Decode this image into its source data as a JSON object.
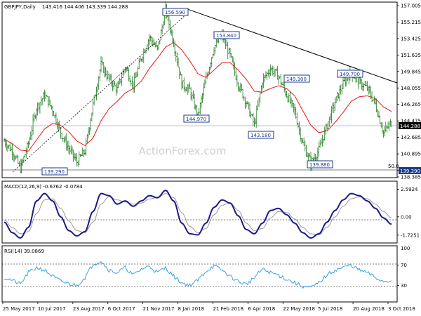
{
  "header": {
    "symbol_title": "GBPJPY,Daily",
    "ohlc": "143.416 144.406 143.339 144.288"
  },
  "watermark": "ActionForex.com",
  "price_panel": {
    "price_ticks": [
      "157.005",
      "155.215",
      "153.425",
      "151.635",
      "149.845",
      "148.055",
      "146.265",
      "144.475",
      "142.685",
      "140.895",
      "139.105",
      "138.385"
    ],
    "current_price": "144.288",
    "fib_label": "50.0",
    "fib_price": "139.290",
    "annotations": [
      {
        "label": "156.590"
      },
      {
        "label": "153.840"
      },
      {
        "label": "149.300"
      },
      {
        "label": "149.700"
      },
      {
        "label": "144.970"
      },
      {
        "label": "143.180"
      },
      {
        "label": "139.880"
      },
      {
        "label": "139.290"
      }
    ]
  },
  "macd_panel": {
    "title": "MACD(12,26,9) -0.6762 -0.0784",
    "ticks": [
      "2.5924",
      "0.00",
      "-1.7251"
    ]
  },
  "rsi_panel": {
    "title": "RSI(14) 39.0869",
    "ticks": [
      "70",
      "30"
    ],
    "extra_tick": "100"
  },
  "x_axis": {
    "labels": [
      "25 May 2017",
      "10 Jul 2017",
      "23 Aug 2017",
      "6 Oct 2017",
      "21 Nov 2017",
      "8 Jan 2018",
      "21 Feb 2018",
      "6 Apr 2018",
      "22 May 2018",
      "5 Jul 2018",
      "20 Aug 2018",
      "3 Oct 2018"
    ]
  },
  "colors": {
    "price_bars": "#1e7a1e",
    "moving_average": "#e51a1a",
    "macd_line": "#1a1a8c",
    "signal_line": "#9a9a9a",
    "rsi_line": "#34a3e6",
    "label_box": "#1a3a8c",
    "current_box": "#000000",
    "fib_box": "#1a3a8c"
  },
  "chart_data": [
    {
      "type": "line",
      "title": "GBPJPY,Daily",
      "series": [
        {
          "values": [
            142.3,
            141.2,
            139.3,
            142.0,
            145.9,
            147.3,
            145.7,
            143.2,
            141.5,
            140.0,
            141.2,
            146.2,
            150.6,
            149.0,
            147.9,
            150.4,
            148.3,
            151.4,
            153.6,
            152.2,
            156.6,
            153.0,
            148.5,
            147.8,
            145.0,
            149.0,
            152.5,
            153.8,
            151.5,
            148.5,
            146.5,
            144.0,
            148.8,
            150.2,
            149.3,
            147.3,
            145.5,
            142.0,
            139.9,
            141.3,
            144.0,
            146.5,
            148.5,
            149.7,
            148.7,
            148.0,
            146.3,
            143.2,
            144.3
          ]
        },
        {
          "name": "Moving average",
          "values": [
            142.5,
            142.0,
            141.3,
            141.2,
            142.4,
            143.6,
            144.2,
            144.0,
            143.3,
            142.3,
            141.8,
            142.6,
            144.5,
            145.8,
            146.6,
            147.5,
            148.0,
            148.8,
            150.2,
            151.3,
            152.5,
            153.0,
            152.2,
            151.0,
            149.6,
            149.2,
            150.0,
            150.8,
            150.8,
            150.0,
            149.0,
            147.7,
            147.6,
            148.0,
            148.3,
            148.0,
            147.2,
            145.6,
            144.0,
            143.2,
            143.4,
            144.3,
            145.4,
            146.6,
            147.1,
            147.2,
            146.9,
            146.0,
            145.5
          ]
        },
        {
          "name": "Trend line",
          "values": [
            156.6,
            148.6
          ]
        }
      ],
      "ylim": [
        138.385,
        157.005
      ]
    },
    {
      "type": "line",
      "title": "MACD(12,26,9) -0.6762 -0.0784",
      "series": [
        {
          "values": [
            -0.5,
            -1.5,
            -2.0,
            -1.0,
            1.5,
            2.2,
            1.5,
            0.0,
            -1.3,
            -1.8,
            -1.4,
            0.5,
            2.2,
            2.0,
            1.2,
            1.5,
            1.0,
            1.5,
            2.0,
            1.8,
            2.5,
            1.5,
            -0.6,
            -1.6,
            -1.7,
            -0.6,
            0.9,
            1.6,
            1.3,
            0.1,
            -1.2,
            -1.6,
            -0.6,
            0.6,
            0.8,
            0.2,
            -0.6,
            -1.5,
            -2.0,
            -1.6,
            -0.5,
            0.6,
            1.6,
            2.2,
            2.0,
            1.5,
            0.8,
            -0.1,
            -0.7
          ]
        },
        {
          "values": [
            -0.3,
            -1.0,
            -1.6,
            -1.4,
            0.3,
            1.6,
            1.7,
            0.8,
            -0.4,
            -1.3,
            -1.5,
            -0.5,
            1.2,
            1.9,
            1.6,
            1.4,
            1.2,
            1.3,
            1.7,
            1.8,
            2.2,
            1.8,
            0.4,
            -0.9,
            -1.5,
            -1.1,
            0.2,
            1.1,
            1.3,
            0.6,
            -0.6,
            -1.3,
            -1.1,
            -0.1,
            0.5,
            0.4,
            -0.2,
            -1.0,
            -1.6,
            -1.7,
            -1.0,
            0.0,
            1.0,
            1.7,
            1.9,
            1.7,
            1.2,
            0.5,
            -0.1
          ]
        }
      ],
      "ylim": [
        -2.4,
        3.1
      ]
    },
    {
      "type": "line",
      "title": "RSI(14) 39.0869",
      "series": [
        {
          "values": [
            45,
            40,
            32,
            55,
            65,
            60,
            48,
            38,
            33,
            30,
            45,
            72,
            78,
            60,
            55,
            65,
            50,
            62,
            68,
            55,
            65,
            48,
            35,
            30,
            40,
            58,
            68,
            60,
            48,
            38,
            32,
            45,
            62,
            55,
            50,
            42,
            35,
            28,
            25,
            35,
            50,
            60,
            65,
            70,
            60,
            55,
            45,
            38,
            39
          ]
        }
      ],
      "ylim": [
        0,
        100
      ]
    }
  ]
}
